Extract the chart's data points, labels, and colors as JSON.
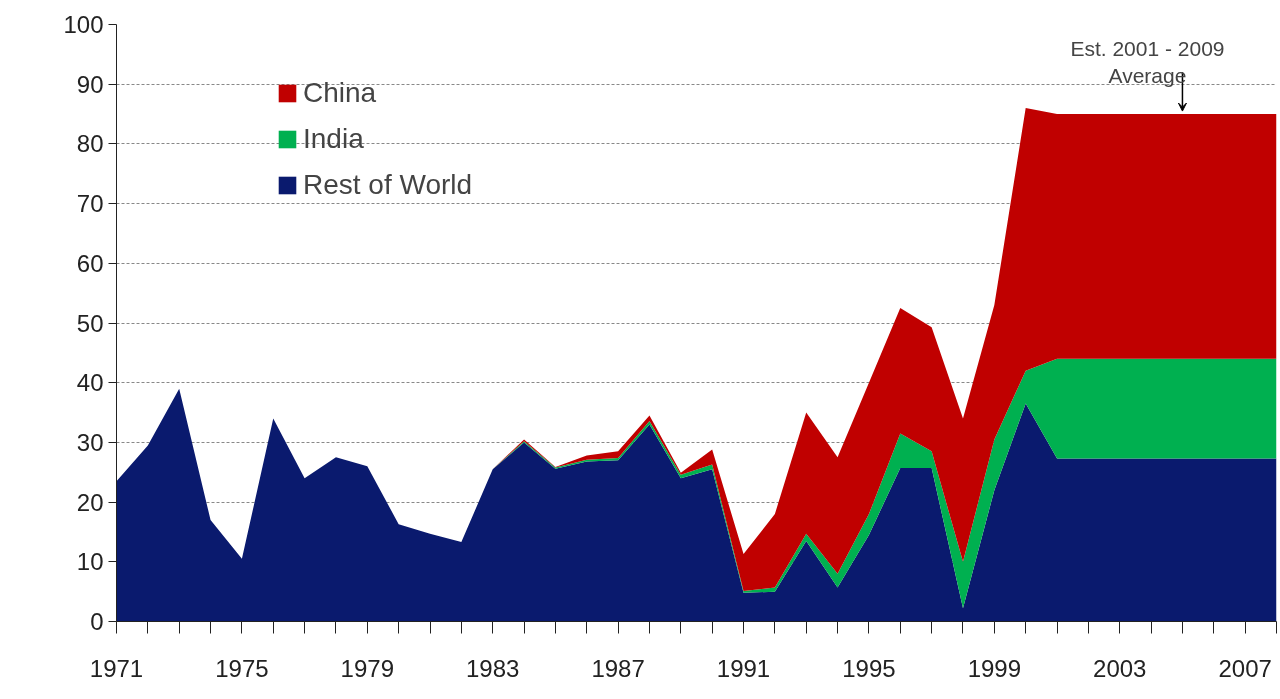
{
  "chart_data": {
    "type": "area",
    "stacked": true,
    "x": [
      1971,
      1972,
      1973,
      1974,
      1975,
      1976,
      1977,
      1978,
      1979,
      1980,
      1981,
      1982,
      1983,
      1984,
      1985,
      1986,
      1987,
      1988,
      1989,
      1990,
      1991,
      1992,
      1993,
      1994,
      1995,
      1996,
      1997,
      1998,
      1999,
      2000,
      2001,
      2002,
      2003,
      2004,
      2005,
      2006,
      2007,
      2008
    ],
    "series": [
      {
        "name": "Rest of World",
        "color": "#0a1a6e",
        "values": [
          23.5,
          29.5,
          39,
          17,
          10.5,
          34,
          24,
          27.5,
          26,
          16.3,
          14.7,
          13.3,
          25.5,
          30,
          25.6,
          26.8,
          27,
          33,
          24,
          25.5,
          4.8,
          5,
          13.5,
          5.7,
          14.5,
          25.7,
          25.7,
          2.2,
          22,
          36.5,
          27.3,
          27.3,
          27.3,
          27.3,
          27.3,
          27.3,
          27.3,
          27.3
        ]
      },
      {
        "name": "India",
        "color": "#00b050",
        "values": [
          0,
          0,
          0,
          0,
          0,
          0,
          0,
          0,
          0,
          0,
          0,
          0,
          0,
          0.2,
          0.2,
          0.3,
          0.4,
          0.6,
          0.6,
          0.8,
          0.3,
          0.7,
          1.2,
          2.3,
          3.5,
          5.8,
          2.8,
          7.8,
          8.5,
          5.5,
          16.7,
          16.7,
          16.7,
          16.7,
          16.7,
          16.7,
          16.7,
          16.7
        ]
      },
      {
        "name": "China",
        "color": "#c00000",
        "values": [
          0,
          0,
          0,
          0,
          0,
          0,
          0,
          0,
          0,
          0,
          0,
          0,
          0,
          0.3,
          0.1,
          0.7,
          1.1,
          0.9,
          0.3,
          2.5,
          6.2,
          12.3,
          20.3,
          19.5,
          22,
          21,
          20.8,
          24,
          22.5,
          44,
          41,
          41,
          41,
          41,
          41,
          41,
          41,
          41
        ]
      }
    ],
    "xlim": [
      1971,
      2008
    ],
    "xticks": [
      1971,
      {
        "value": 1972,
        "label": null
      },
      {
        "value": 1973,
        "label": null
      },
      {
        "value": 1974,
        "label": null
      },
      1975,
      {
        "value": 1976,
        "label": null
      },
      {
        "value": 1977,
        "label": null
      },
      {
        "value": 1978,
        "label": null
      },
      1979,
      {
        "value": 1980,
        "label": null
      },
      {
        "value": 1981,
        "label": null
      },
      {
        "value": 1982,
        "label": null
      },
      1983,
      {
        "value": 1984,
        "label": null
      },
      {
        "value": 1985,
        "label": null
      },
      {
        "value": 1986,
        "label": null
      },
      1987,
      {
        "value": 1988,
        "label": null
      },
      {
        "value": 1989,
        "label": null
      },
      {
        "value": 1990,
        "label": null
      },
      1991,
      {
        "value": 1992,
        "label": null
      },
      {
        "value": 1993,
        "label": null
      },
      {
        "value": 1994,
        "label": null
      },
      1995,
      {
        "value": 1996,
        "label": null
      },
      {
        "value": 1997,
        "label": null
      },
      {
        "value": 1998,
        "label": null
      },
      1999,
      {
        "value": 2000,
        "label": null
      },
      {
        "value": 2001,
        "label": null
      },
      {
        "value": 2002,
        "label": null
      },
      2003,
      {
        "value": 2004,
        "label": null
      },
      {
        "value": 2005,
        "label": null
      },
      {
        "value": 2006,
        "label": null
      },
      2007,
      {
        "value": 2008,
        "label": null
      }
    ],
    "ylim": [
      0,
      100
    ],
    "yticks": [
      0,
      10,
      20,
      30,
      40,
      50,
      60,
      70,
      80,
      90,
      100
    ],
    "grid": "y",
    "legend": "top left",
    "annotations": [
      {
        "text": "Est. 2001 - 2009\nAverage",
        "x": 2005,
        "y": 85
      }
    ]
  }
}
